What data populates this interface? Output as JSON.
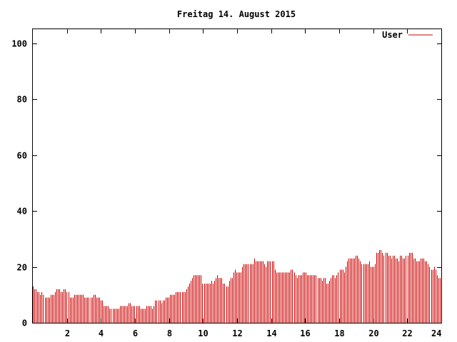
{
  "chart_data": {
    "type": "bar",
    "title": "Freitag 14. August 2015",
    "xlabel": "",
    "ylabel": "",
    "xlim": [
      0,
      24
    ],
    "ylim": [
      0,
      105
    ],
    "x_ticks": [
      2,
      4,
      6,
      8,
      10,
      12,
      14,
      16,
      18,
      20,
      22,
      24
    ],
    "y_ticks": [
      0,
      20,
      40,
      60,
      80,
      100
    ],
    "x_tick_labels": [
      "2",
      "4",
      "6",
      "8",
      "10",
      "12",
      "14",
      "16",
      "18",
      "20",
      "22",
      "24"
    ],
    "y_tick_labels": [
      "0",
      "20",
      "40",
      "60",
      "80",
      "100"
    ],
    "legend_position": "top-right",
    "series": [
      {
        "name": "User",
        "color": "#cc0000",
        "values": [
          13,
          12,
          12,
          11,
          11,
          10,
          11,
          10,
          9,
          9,
          9,
          9,
          10,
          10,
          10,
          11,
          12,
          12,
          12,
          11,
          11,
          12,
          12,
          11,
          11,
          9,
          9,
          9,
          10,
          10,
          10,
          10,
          10,
          10,
          10,
          9,
          9,
          9,
          9,
          9,
          9,
          10,
          10,
          9,
          9,
          9,
          8,
          8,
          6,
          6,
          6,
          6,
          5,
          5,
          5,
          5,
          5,
          5,
          5,
          6,
          6,
          6,
          6,
          6,
          6,
          7,
          7,
          6,
          6,
          6,
          6,
          6,
          6,
          5,
          5,
          5,
          5,
          6,
          6,
          6,
          6,
          5,
          6,
          8,
          8,
          8,
          8,
          7,
          8,
          8,
          9,
          9,
          9,
          10,
          10,
          10,
          10,
          11,
          11,
          11,
          11,
          11,
          11,
          11,
          12,
          13,
          14,
          15,
          16,
          17,
          17,
          17,
          17,
          17,
          17,
          14,
          14,
          14,
          14,
          14,
          14,
          15,
          14,
          15,
          16,
          17,
          16,
          16,
          16,
          14,
          14,
          13,
          13,
          15,
          16,
          16,
          18,
          19,
          18,
          18,
          18,
          18,
          20,
          21,
          21,
          21,
          21,
          21,
          21,
          21,
          23,
          22,
          22,
          22,
          22,
          22,
          22,
          21,
          20,
          22,
          22,
          22,
          22,
          22,
          19,
          18,
          18,
          18,
          18,
          18,
          18,
          18,
          18,
          18,
          18,
          19,
          19,
          18,
          17,
          16,
          17,
          17,
          17,
          18,
          18,
          18,
          17,
          17,
          17,
          17,
          17,
          17,
          17,
          16,
          16,
          16,
          15,
          16,
          16,
          14,
          14,
          15,
          16,
          17,
          17,
          16,
          17,
          18,
          19,
          19,
          19,
          18,
          20,
          22,
          23,
          23,
          23,
          23,
          23,
          24,
          24,
          23,
          22,
          21,
          21,
          21,
          21,
          21,
          22,
          20,
          20,
          20,
          21,
          25,
          25,
          26,
          26,
          25,
          24,
          25,
          25,
          24,
          24,
          23,
          24,
          24,
          23,
          23,
          22,
          24,
          24,
          23,
          23,
          24,
          24,
          25,
          25,
          25,
          23,
          23,
          22,
          22,
          22,
          23,
          23,
          23,
          22,
          22,
          21,
          20,
          19,
          19,
          20,
          19,
          17,
          16,
          16
        ]
      }
    ]
  }
}
